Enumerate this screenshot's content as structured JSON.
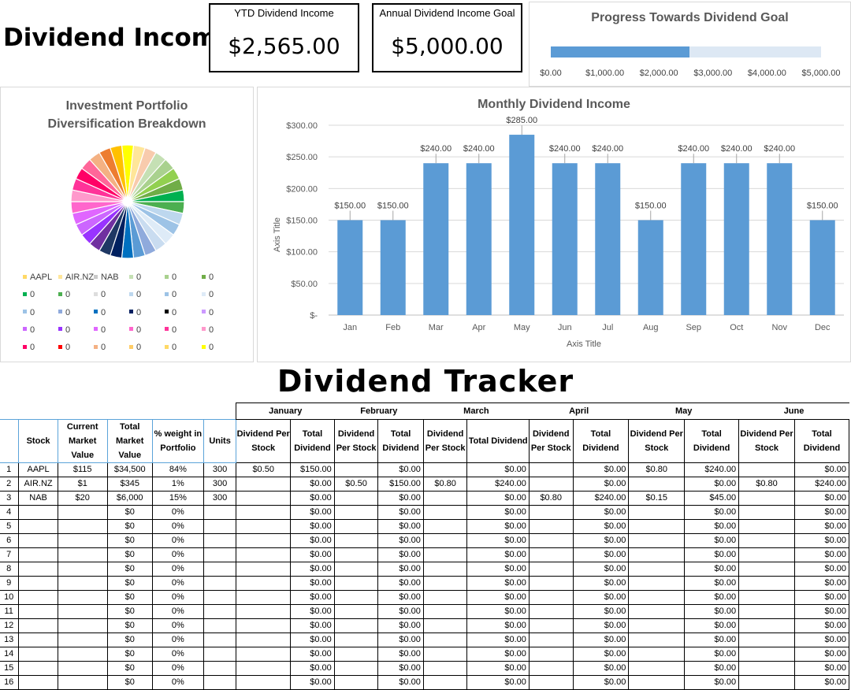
{
  "header": {
    "title": "Dividend Income",
    "ytd_label": "YTD Dividend Income",
    "ytd_value": "$2,565.00",
    "goal_label": "Annual Dividend Income Goal",
    "goal_value": "$5,000.00"
  },
  "progress": {
    "title": "Progress Towards Dividend Goal",
    "value": 2565,
    "max": 5000,
    "ticks": [
      "$0.00",
      "$1,000.00",
      "$2,000.00",
      "$3,000.00",
      "$4,000.00",
      "$5,000.00"
    ],
    "bar_color": "#5b9bd5",
    "track_color": "#dde8f4"
  },
  "pie": {
    "title_line1": "Investment Portfolio",
    "title_line2": "Diversification Breakdown",
    "legend": [
      {
        "label": "AAPL",
        "color": "#ffd966"
      },
      {
        "label": "AIR.NZ",
        "color": "#ffe699"
      },
      {
        "label": "NAB",
        "color": "#c9c9c9"
      },
      {
        "label": "0",
        "color": "#c5e0b4"
      },
      {
        "label": "0",
        "color": "#a9d18e"
      },
      {
        "label": "0",
        "color": "#70ad47"
      },
      {
        "label": "0",
        "color": "#00b050"
      },
      {
        "label": "0",
        "color": "#4caf50"
      },
      {
        "label": "0",
        "color": "#dddddd"
      },
      {
        "label": "0",
        "color": "#bdd7ee"
      },
      {
        "label": "0",
        "color": "#9dc3e6"
      },
      {
        "label": "0",
        "color": "#deebf7"
      },
      {
        "label": "0",
        "color": "#9dc3e6"
      },
      {
        "label": "0",
        "color": "#8faadc"
      },
      {
        "label": "0",
        "color": "#0070c0"
      },
      {
        "label": "0",
        "color": "#002060"
      },
      {
        "label": "0",
        "color": "#000000"
      },
      {
        "label": "0",
        "color": "#cc99ff"
      },
      {
        "label": "0",
        "color": "#cc66ff"
      },
      {
        "label": "0",
        "color": "#9933ff"
      },
      {
        "label": "0",
        "color": "#e066ff"
      },
      {
        "label": "0",
        "color": "#ff66cc"
      },
      {
        "label": "0",
        "color": "#ff3399"
      },
      {
        "label": "0",
        "color": "#ff99cc"
      },
      {
        "label": "0",
        "color": "#ff0066"
      },
      {
        "label": "0",
        "color": "#ff0000"
      },
      {
        "label": "0",
        "color": "#f4b183"
      },
      {
        "label": "0",
        "color": "#ffcc66"
      },
      {
        "label": "0",
        "color": "#ffd966"
      },
      {
        "label": "0",
        "color": "#ffff00"
      }
    ],
    "slice_colors": [
      "#ffff00",
      "#ffe699",
      "#f8cbad",
      "#c5e0b4",
      "#a9d18e",
      "#92d050",
      "#70ad47",
      "#00b050",
      "#4caf50",
      "#bdd7ee",
      "#9dc3e6",
      "#deebf7",
      "#c9dcf0",
      "#8faadc",
      "#5b9bd5",
      "#0070c0",
      "#002060",
      "#1f3864",
      "#7030a0",
      "#9933ff",
      "#cc66ff",
      "#e066ff",
      "#ff66cc",
      "#ff99cc",
      "#ff3399",
      "#ff0066",
      "#ff6699",
      "#f4b183",
      "#ed7d31",
      "#ffc000"
    ]
  },
  "monthly": {
    "title": "Monthly Dividend Income",
    "ylabel": "Axis Title",
    "xlabel": "Axis Title",
    "yticks": [
      "$-",
      "$50.00",
      "$100.00",
      "$150.00",
      "$200.00",
      "$250.00",
      "$300.00"
    ],
    "bar_color": "#5b9bd5"
  },
  "chart_data": {
    "type": "bar",
    "title": "Monthly Dividend Income",
    "xlabel": "Axis Title",
    "ylabel": "Axis Title",
    "categories": [
      "Jan",
      "Feb",
      "Mar",
      "Apr",
      "May",
      "Jun",
      "Jul",
      "Aug",
      "Sep",
      "Oct",
      "Nov",
      "Dec"
    ],
    "values": [
      150,
      150,
      240,
      240,
      285,
      240,
      240,
      150,
      240,
      240,
      240,
      150
    ],
    "labels": [
      "$150.00",
      "$150.00",
      "$240.00",
      "$240.00",
      "$285.00",
      "$240.00",
      "$240.00",
      "$150.00",
      "$240.00",
      "$240.00",
      "$240.00",
      "$150.00"
    ],
    "ylim": [
      0,
      300
    ],
    "grid": true
  },
  "tracker": {
    "title": "Dividend Tracker",
    "months": [
      "January",
      "February",
      "March",
      "April",
      "May",
      "June"
    ],
    "headers": {
      "stock": "Stock",
      "price": "Current Market Value",
      "total": "Total Market Value",
      "weight": "% weight in Portfolio",
      "units": "Units",
      "dps": "Dividend Per Stock",
      "td": "Total Dividend"
    },
    "rows": [
      [
        "1",
        "AAPL",
        "$115",
        "$34,500",
        "84%",
        "300",
        "$0.50",
        "$150.00",
        "",
        "$0.00",
        "",
        "$0.00",
        "",
        "$0.00",
        "$0.80",
        "$240.00",
        "",
        "$0.00"
      ],
      [
        "2",
        "AIR.NZ",
        "$1",
        "$345",
        "1%",
        "300",
        "",
        "$0.00",
        "$0.50",
        "$150.00",
        "$0.80",
        "$240.00",
        "",
        "$0.00",
        "",
        "$0.00",
        "$0.80",
        "$240.00"
      ],
      [
        "3",
        "NAB",
        "$20",
        "$6,000",
        "15%",
        "300",
        "",
        "$0.00",
        "",
        "$0.00",
        "",
        "$0.00",
        "$0.80",
        "$240.00",
        "$0.15",
        "$45.00",
        "",
        "$0.00"
      ],
      [
        "4",
        "",
        "",
        "$0",
        "0%",
        "",
        "",
        "$0.00",
        "",
        "$0.00",
        "",
        "$0.00",
        "",
        "$0.00",
        "",
        "$0.00",
        "",
        "$0.00"
      ],
      [
        "5",
        "",
        "",
        "$0",
        "0%",
        "",
        "",
        "$0.00",
        "",
        "$0.00",
        "",
        "$0.00",
        "",
        "$0.00",
        "",
        "$0.00",
        "",
        "$0.00"
      ],
      [
        "6",
        "",
        "",
        "$0",
        "0%",
        "",
        "",
        "$0.00",
        "",
        "$0.00",
        "",
        "$0.00",
        "",
        "$0.00",
        "",
        "$0.00",
        "",
        "$0.00"
      ],
      [
        "7",
        "",
        "",
        "$0",
        "0%",
        "",
        "",
        "$0.00",
        "",
        "$0.00",
        "",
        "$0.00",
        "",
        "$0.00",
        "",
        "$0.00",
        "",
        "$0.00"
      ],
      [
        "8",
        "",
        "",
        "$0",
        "0%",
        "",
        "",
        "$0.00",
        "",
        "$0.00",
        "",
        "$0.00",
        "",
        "$0.00",
        "",
        "$0.00",
        "",
        "$0.00"
      ],
      [
        "9",
        "",
        "",
        "$0",
        "0%",
        "",
        "",
        "$0.00",
        "",
        "$0.00",
        "",
        "$0.00",
        "",
        "$0.00",
        "",
        "$0.00",
        "",
        "$0.00"
      ],
      [
        "10",
        "",
        "",
        "$0",
        "0%",
        "",
        "",
        "$0.00",
        "",
        "$0.00",
        "",
        "$0.00",
        "",
        "$0.00",
        "",
        "$0.00",
        "",
        "$0.00"
      ],
      [
        "11",
        "",
        "",
        "$0",
        "0%",
        "",
        "",
        "$0.00",
        "",
        "$0.00",
        "",
        "$0.00",
        "",
        "$0.00",
        "",
        "$0.00",
        "",
        "$0.00"
      ],
      [
        "12",
        "",
        "",
        "$0",
        "0%",
        "",
        "",
        "$0.00",
        "",
        "$0.00",
        "",
        "$0.00",
        "",
        "$0.00",
        "",
        "$0.00",
        "",
        "$0.00"
      ],
      [
        "13",
        "",
        "",
        "$0",
        "0%",
        "",
        "",
        "$0.00",
        "",
        "$0.00",
        "",
        "$0.00",
        "",
        "$0.00",
        "",
        "$0.00",
        "",
        "$0.00"
      ],
      [
        "14",
        "",
        "",
        "$0",
        "0%",
        "",
        "",
        "$0.00",
        "",
        "$0.00",
        "",
        "$0.00",
        "",
        "$0.00",
        "",
        "$0.00",
        "",
        "$0.00"
      ],
      [
        "15",
        "",
        "",
        "$0",
        "0%",
        "",
        "",
        "$0.00",
        "",
        "$0.00",
        "",
        "$0.00",
        "",
        "$0.00",
        "",
        "$0.00",
        "",
        "$0.00"
      ],
      [
        "16",
        "",
        "",
        "$0",
        "0%",
        "",
        "",
        "$0.00",
        "",
        "$0.00",
        "",
        "$0.00",
        "",
        "$0.00",
        "",
        "$0.00",
        "",
        "$0.00"
      ]
    ]
  }
}
